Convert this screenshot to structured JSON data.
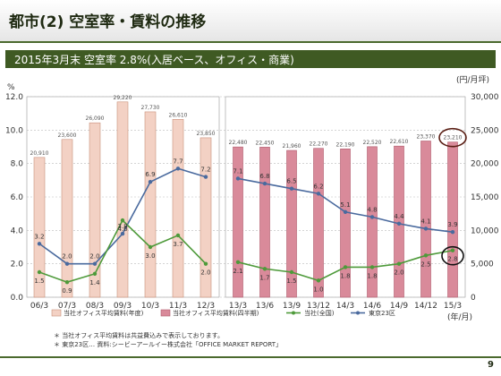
{
  "header": {
    "title": "都市(2) 空室率・賃料の推移"
  },
  "subheader": {
    "text": "2015年3月末 空室率 2.8%(入居ベース、オフィス・商業)"
  },
  "chart_data": {
    "type": "bar",
    "left_axis_unit": "%",
    "right_axis_unit": "(円/月坪)",
    "x_axis_unit": "(年/月)",
    "ylim_left": [
      0,
      12
    ],
    "ylim_right": [
      0,
      30000
    ],
    "yticks_left": [
      "0.0",
      "2.0",
      "4.0",
      "6.0",
      "8.0",
      "10.0",
      "12.0"
    ],
    "yticks_right": [
      "0",
      "5,000",
      "10,000",
      "15,000",
      "20,000",
      "25,000",
      "30,000"
    ],
    "annual": {
      "categories": [
        "06/3",
        "07/3",
        "08/3",
        "09/3",
        "10/3",
        "11/3",
        "12/3"
      ],
      "rent": [
        20910,
        23600,
        26090,
        29220,
        27730,
        26610,
        23850
      ],
      "rent_labels": [
        "20,910",
        "23,600",
        "26,090",
        "29,220",
        "27,730",
        "26,610",
        "23,850"
      ],
      "vacancy_company": [
        1.5,
        0.9,
        1.4,
        4.6,
        3.0,
        3.7,
        2.0
      ],
      "vacancy_company_labels": [
        "1.5",
        "0.9",
        "1.4",
        "4.6",
        "3.0",
        "3.7",
        "2.0"
      ],
      "vacancy_tokyo": [
        3.2,
        2.0,
        2.0,
        3.8,
        6.9,
        7.7,
        7.2
      ],
      "vacancy_tokyo_labels": [
        "3.2",
        "2.0",
        "2.0",
        "3.8",
        "6.9",
        "7.7",
        "7.2"
      ]
    },
    "quarterly": {
      "categories": [
        "13/3",
        "13/6",
        "13/9",
        "13/12",
        "14/3",
        "14/6",
        "14/9",
        "14/12",
        "15/3"
      ],
      "rent": [
        22480,
        22450,
        21960,
        22270,
        22190,
        22520,
        22610,
        23370,
        23210
      ],
      "rent_labels": [
        "22,480",
        "22,450",
        "21,960",
        "22,270",
        "22,190",
        "22,520",
        "22,610",
        "23,370",
        "23,210"
      ],
      "vacancy_company": [
        2.1,
        1.7,
        1.5,
        1.0,
        1.8,
        1.8,
        2.0,
        2.5,
        2.8
      ],
      "vacancy_company_labels": [
        "2.1",
        "1.7",
        "1.5",
        "1.0",
        "1.8",
        "1.8",
        "2.0",
        "2.5",
        "2.8"
      ],
      "vacancy_tokyo": [
        7.1,
        6.8,
        6.5,
        6.2,
        5.1,
        4.8,
        4.4,
        4.1,
        3.9
      ],
      "vacancy_tokyo_labels": [
        "7.1",
        "6.8",
        "6.5",
        "6.2",
        "5.1",
        "4.8",
        "4.4",
        "4.1",
        "3.9"
      ]
    },
    "legend": [
      {
        "label": "当社オフィス平均賃料(年度)"
      },
      {
        "label": "当社オフィス平均賃料(四半期)"
      },
      {
        "label": "当社(全国)"
      },
      {
        "label": "東京23区"
      }
    ],
    "colors": {
      "annual_bar": "#f3d1c4",
      "annual_bar_stroke": "#c9907b",
      "quarterly_bar": "#d98a9a",
      "quarterly_bar_stroke": "#b05a6c",
      "company_line": "#4e9a3a",
      "tokyo_line": "#4a6a9e",
      "highlight": "#5a1e14"
    }
  },
  "footnotes": [
    "＊ 当社オフィス平均賃料は共益費込みで表示しております。",
    "＊ 東京23区… 資料:シービーアールイー株式会社「OFFICE MARKET REPORT」"
  ],
  "page_number": "9"
}
